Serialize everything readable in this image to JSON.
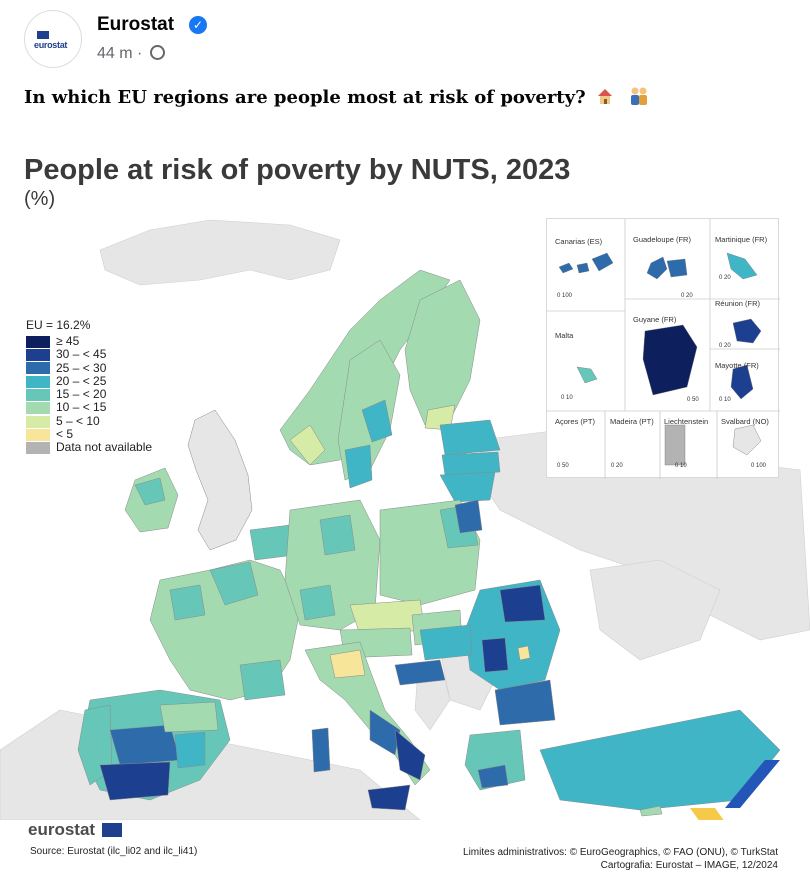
{
  "post": {
    "page_name": "Eurostat",
    "time": "44 m",
    "separator": "·",
    "text": "In which EU regions are people most at risk of poverty?",
    "avatar_text": "eurostat"
  },
  "map": {
    "title": "People at risk of poverty by NUTS, 2023",
    "unit": "(%)",
    "legend": {
      "header": "EU = 16.2%",
      "items": [
        {
          "label": "≥ 45",
          "color": "#0d1f5c"
        },
        {
          "label": "30 – < 45",
          "color": "#1c3f8f"
        },
        {
          "label": "25 – < 30",
          "color": "#2d6bab"
        },
        {
          "label": "20 – < 25",
          "color": "#3fb5c6"
        },
        {
          "label": "15 – < 20",
          "color": "#66c7b8"
        },
        {
          "label": "10 – < 15",
          "color": "#a3dab0"
        },
        {
          "label": "5 – < 10",
          "color": "#d6eba6"
        },
        {
          "label": "< 5",
          "color": "#f7e69a"
        },
        {
          "label": "Data not available",
          "color": "#b3b3b3"
        }
      ]
    },
    "insets": {
      "canarias": "Canarias (ES)",
      "guadeloupe": "Guadeloupe (FR)",
      "martinique": "Martinique (FR)",
      "reunion": "Réunion (FR)",
      "malta": "Malta",
      "guyane": "Guyane (FR)",
      "mayotte": "Mayotte (FR)",
      "acores": "Açores (PT)",
      "madeira": "Madeira (PT)",
      "liechtenstein": "Liechtenstein",
      "svalbard": "Svalbard (NO)",
      "scale_canarias": "0  100",
      "scale_guadeloupe": "0  20",
      "scale_martinique": "0  20",
      "scale_reunion": "0  20",
      "scale_malta": "0  10",
      "scale_guyane": "0 50",
      "scale_mayotte": "0  10",
      "scale_acores": "0  50",
      "scale_madeira": "0  20",
      "scale_liechtenstein": "0  10",
      "scale_svalbard": "0 100"
    },
    "footer": {
      "logo": "eurostat",
      "source": "Source: Eurostat (ilc_li02 and ilc_li41)",
      "credits_line1": "Limites administrativos: © EuroGeographics, © FAO (ONU), © TurkStat",
      "credits_line2": "Cartografia: Eurostat – IMAGE, 12/2024"
    }
  },
  "colors": {
    "sea": "#ffffff",
    "non_eu_land": "#e6e6e6",
    "border": "#555555"
  }
}
